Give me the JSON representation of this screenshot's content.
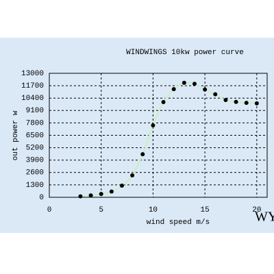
{
  "chart_data": {
    "type": "line",
    "title": "WINDWINGS 10kw power curve",
    "x_label": "wind speed m/s",
    "y_label": "out power w",
    "x": [
      3,
      4,
      5,
      6,
      7,
      8,
      9,
      10,
      11,
      12,
      13,
      14,
      15,
      16,
      17,
      18,
      19,
      20
    ],
    "series": [
      {
        "name": "power",
        "color": "#000000",
        "line_color": "#c8f0c0",
        "values": [
          100,
          200,
          350,
          600,
          1220,
          2300,
          4520,
          7540,
          9980,
          11340,
          12000,
          11900,
          11300,
          10800,
          10200,
          10000,
          9900,
          9850
        ]
      }
    ],
    "xlim": [
      0,
      21
    ],
    "xticks": [
      0,
      5,
      10,
      15,
      20
    ],
    "ylim": [
      0,
      13000
    ],
    "yticks": [
      0,
      1300,
      2600,
      3900,
      5200,
      6500,
      7800,
      9100,
      10400,
      11700,
      13000
    ],
    "grid": true,
    "watermark": "WY"
  }
}
